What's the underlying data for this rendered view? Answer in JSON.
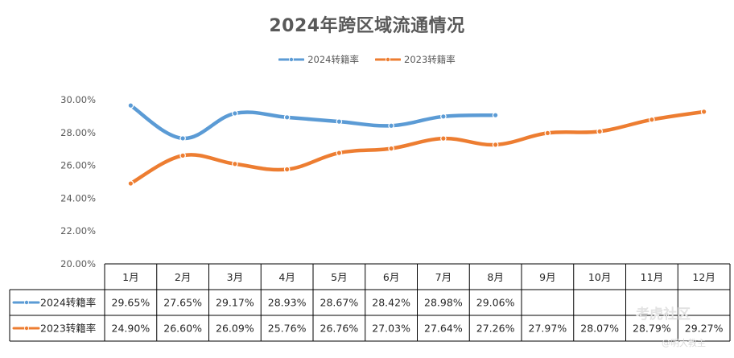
{
  "chart_data": {
    "type": "line",
    "title": "2024年跨区域流通情况",
    "categories": [
      "1月",
      "2月",
      "3月",
      "4月",
      "5月",
      "6月",
      "7月",
      "8月",
      "9月",
      "10月",
      "11月",
      "12月"
    ],
    "series": [
      {
        "name": "2024转籍率",
        "color": "#5b9bd5",
        "values": [
          29.65,
          27.65,
          29.17,
          28.93,
          28.67,
          28.42,
          28.98,
          29.06,
          null,
          null,
          null,
          null
        ],
        "labels": [
          "29.65%",
          "27.65%",
          "29.17%",
          "28.93%",
          "28.67%",
          "28.42%",
          "28.98%",
          "29.06%",
          "",
          "",
          "",
          ""
        ]
      },
      {
        "name": "2023转籍率",
        "color": "#ed7d31",
        "values": [
          24.9,
          26.6,
          26.09,
          25.76,
          26.76,
          27.03,
          27.64,
          27.26,
          27.97,
          28.07,
          28.79,
          29.27
        ],
        "labels": [
          "24.90%",
          "26.60%",
          "26.09%",
          "25.76%",
          "26.76%",
          "27.03%",
          "27.64%",
          "27.26%",
          "27.97%",
          "28.07%",
          "28.79%",
          "29.27%"
        ]
      }
    ],
    "ylim": [
      20,
      30
    ],
    "yticks": [
      "20.00%",
      "22.00%",
      "24.00%",
      "26.00%",
      "28.00%",
      "30.00%"
    ],
    "grid": true,
    "legend": "top-center",
    "data_table": true
  },
  "watermark": {
    "text1": "考虎社区",
    "text2": "@明大教主"
  }
}
